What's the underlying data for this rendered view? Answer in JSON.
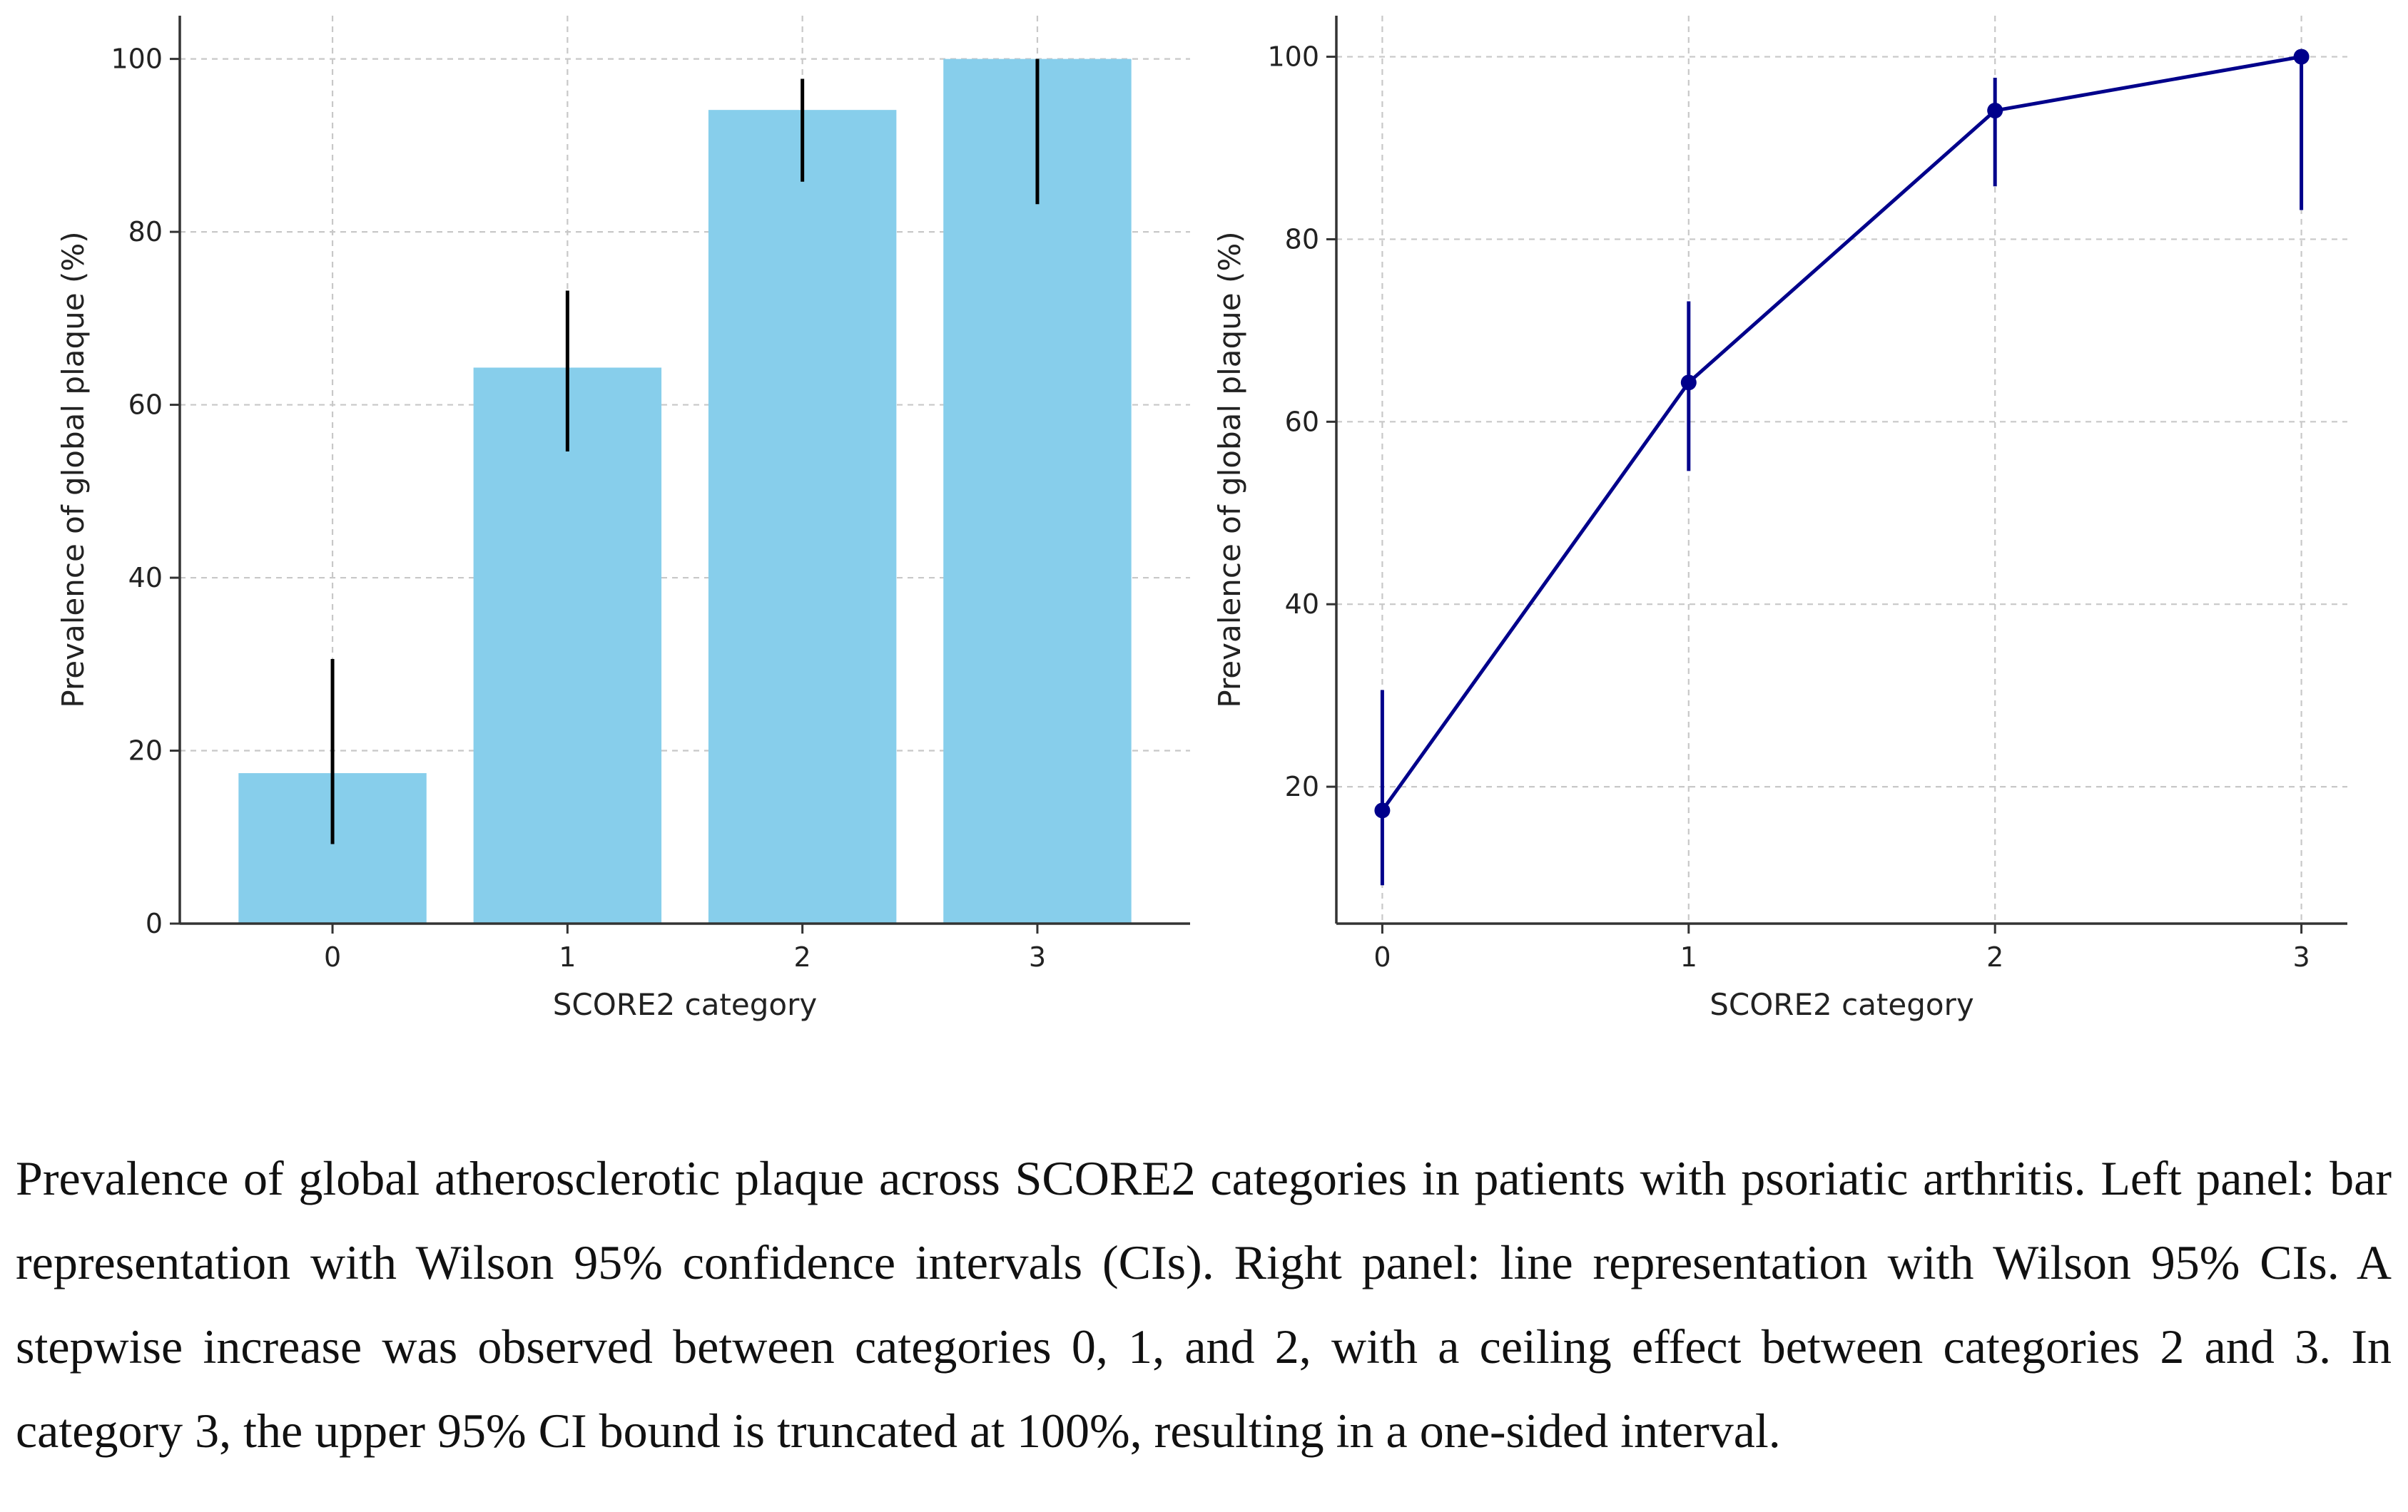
{
  "chart_data": [
    {
      "type": "bar",
      "categories": [
        "0",
        "1",
        "2",
        "3"
      ],
      "values": [
        17.4,
        64.3,
        94.1,
        100.0
      ],
      "ci_lower": [
        9.2,
        54.6,
        85.8,
        83.2
      ],
      "ci_upper": [
        30.6,
        73.2,
        97.7,
        100.0
      ],
      "xlabel": "SCORE2 category",
      "ylabel": "Prevalence of global plaque (%)",
      "ylim": [
        0,
        105
      ],
      "yticks": [
        0,
        20,
        40,
        60,
        80,
        100
      ],
      "grid": true,
      "colors": {
        "bar": "#87CEEB",
        "error_bar": "#000000"
      }
    },
    {
      "type": "line",
      "x": [
        0,
        1,
        2,
        3
      ],
      "xticks": [
        "0",
        "1",
        "2",
        "3"
      ],
      "values": [
        17.4,
        64.3,
        94.1,
        100.0
      ],
      "ci_lower": [
        9.2,
        54.6,
        85.8,
        83.2
      ],
      "ci_upper": [
        30.6,
        73.2,
        97.7,
        100.0
      ],
      "xlabel": "SCORE2 category",
      "ylabel": "Prevalence of global plaque (%)",
      "ylim": [
        5.0,
        104.5
      ],
      "yticks": [
        20,
        40,
        60,
        80,
        100
      ],
      "grid": true,
      "colors": {
        "line": "#00008B"
      }
    }
  ],
  "caption": "Prevalence of global atherosclerotic plaque across SCORE2 categories in patients with psoriatic arthritis. Left panel: bar representation with Wilson 95% confidence intervals (CIs). Right panel: line representation with Wilson 95% CIs. A stepwise increase was observed between categories 0, 1, and 2, with a ceiling effect between categories 2 and 3. In category 3, the upper 95% CI bound is truncated at 100%, resulting in a one-sided interval."
}
